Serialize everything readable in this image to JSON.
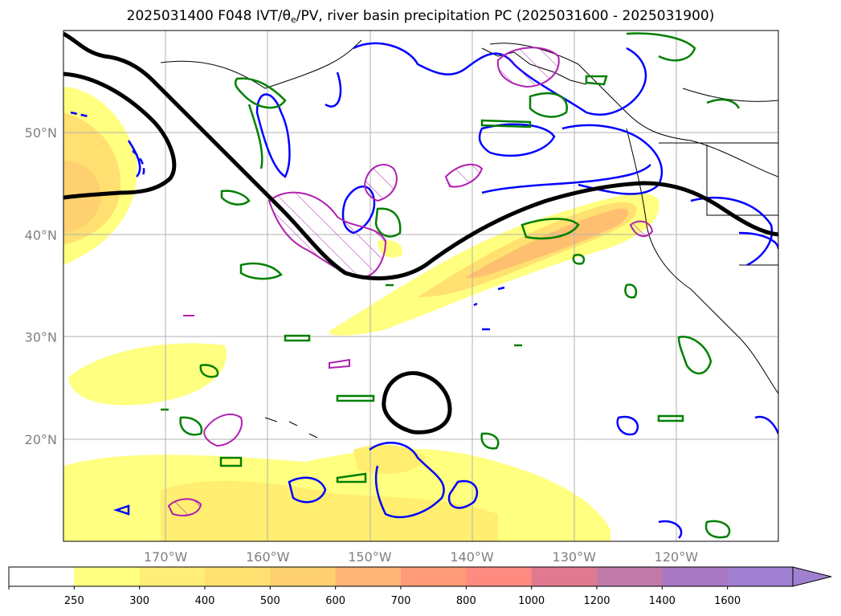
{
  "title": {
    "prefix": "2025031400 F048 IVT/",
    "theta": "θ",
    "theta_sub": "e",
    "suffix": "/PV, river basin precipitation PC (2025031600 - 2025031900)"
  },
  "map": {
    "lat_ticks": [
      {
        "value": 50,
        "label": "50°N"
      },
      {
        "value": 40,
        "label": "40°N"
      },
      {
        "value": 30,
        "label": "30°N"
      },
      {
        "value": 20,
        "label": "20°N"
      }
    ],
    "lon_ticks": [
      {
        "value": -170,
        "label": "170°W"
      },
      {
        "value": -160,
        "label": "160°W"
      },
      {
        "value": -150,
        "label": "150°W"
      },
      {
        "value": -140,
        "label": "140°W"
      },
      {
        "value": -130,
        "label": "130°W"
      },
      {
        "value": -120,
        "label": "120°W"
      }
    ],
    "colors": {
      "ivt_shading": [
        "#ffff80",
        "#ffee70",
        "#ffd868",
        "#ffbf70",
        "#ffa070"
      ],
      "pv_contour": "#000000",
      "theta_e_pos": "#0000ff",
      "theta_e_neg": "#008000",
      "precip_pc": "#b020b0",
      "coastline": "#000000"
    }
  },
  "colorbar": {
    "levels": [
      "250",
      "300",
      "400",
      "500",
      "600",
      "700",
      "800",
      "1000",
      "1200",
      "1400",
      "1600"
    ],
    "colors": [
      "#ffffff",
      "#ffff80",
      "#ffee78",
      "#ffe070",
      "#ffd070",
      "#ffb478",
      "#ff9a78",
      "#ff8a80",
      "#e07a90",
      "#c07aa8",
      "#a878c4",
      "#a080d0"
    ]
  }
}
